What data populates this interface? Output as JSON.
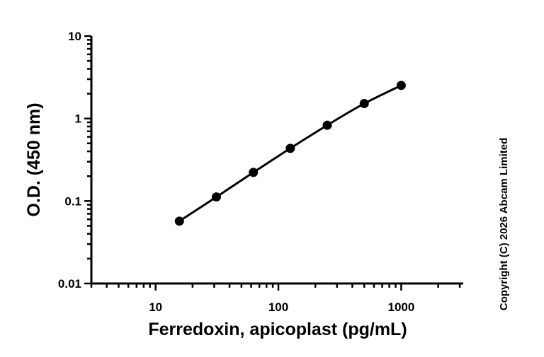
{
  "chart_data": {
    "type": "scatter",
    "xlabel": "Ferredoxin, apicoplast (pg/mL)",
    "ylabel": "O.D. (450 nm)",
    "x_scale": "log",
    "y_scale": "log",
    "xlim": [
      3,
      3200
    ],
    "ylim": [
      0.01,
      10
    ],
    "x_ticks": [
      {
        "value": 10,
        "label": "10"
      },
      {
        "value": 100,
        "label": "100"
      },
      {
        "value": 1000,
        "label": "1000"
      }
    ],
    "y_ticks": [
      {
        "value": 10,
        "label": "10"
      },
      {
        "value": 1,
        "label": "1"
      },
      {
        "value": 0.1,
        "label": "0.1"
      },
      {
        "value": 0.01,
        "label": "0.01"
      }
    ],
    "grid": false,
    "fit_line": true,
    "series": [
      {
        "x": [
          15.625,
          31.25,
          62.5,
          125,
          250,
          500,
          1000
        ],
        "y": [
          0.057,
          0.112,
          0.222,
          0.435,
          0.83,
          1.52,
          2.52
        ]
      }
    ],
    "color": "#000000"
  },
  "copyright": "Copyright (C) 2026 Abcam Limited"
}
